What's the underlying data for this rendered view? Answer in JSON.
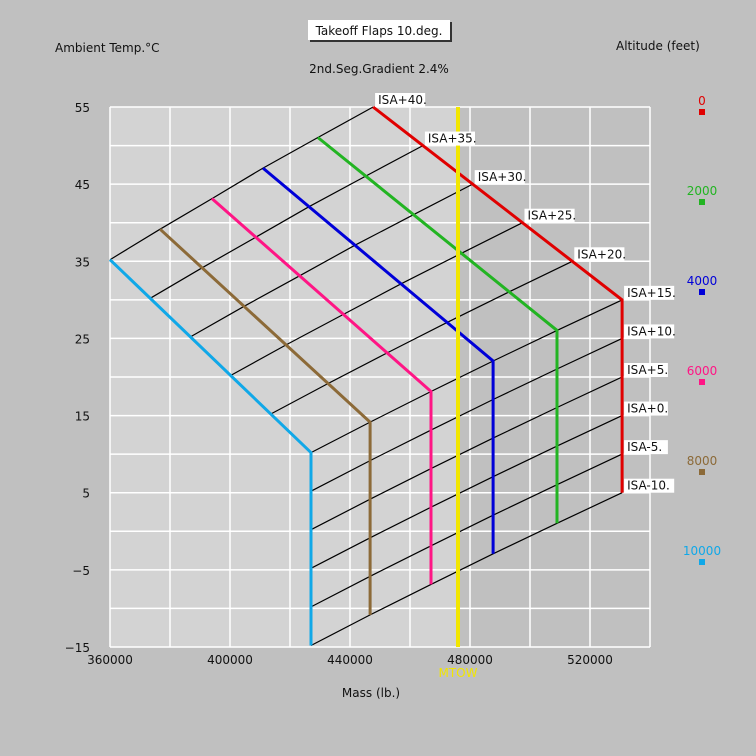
{
  "chart_data": {
    "type": "line",
    "title": "Takeoff Flaps 10.deg.",
    "subtitle": "2nd.Seg.Gradient 2.4%",
    "xlabel": "Mass (lb.)",
    "ylabel": "Ambient Temp.°C",
    "legend_title": "Altitude (feet)",
    "legend_position": "right",
    "xlim": [
      360000,
      540000
    ],
    "ylim": [
      -15,
      55
    ],
    "x_ticks": [
      360000,
      400000,
      440000,
      480000,
      520000
    ],
    "y_ticks": [
      55,
      45,
      35,
      25,
      15,
      5,
      -5,
      -15
    ],
    "x_grid_step": 20000,
    "y_grid_step": 5,
    "grid": true,
    "mtow": {
      "label": "MTOW",
      "mass": 476000,
      "color": "#f2e600"
    },
    "isa_deviations": [
      40,
      35,
      30,
      25,
      20,
      15,
      10,
      5,
      0,
      -5,
      -10
    ],
    "isa_labels": [
      "ISA+40.",
      "ISA+35.",
      "ISA+30.",
      "ISA+25.",
      "ISA+20.",
      "ISA+15.",
      "ISA+10.",
      "ISA+5.",
      "ISA+0.",
      "ISA-5.",
      "ISA-10."
    ],
    "series": [
      {
        "name": "0",
        "altitude": 0,
        "color": "#e00000",
        "mass_isa40": 447700,
        "mass_isa15": 530700
      },
      {
        "name": "2000",
        "altitude": 2000,
        "color": "#22b422",
        "mass_isa40": 429300,
        "mass_isa15": 509000
      },
      {
        "name": "4000",
        "altitude": 4000,
        "color": "#0000d8",
        "mass_isa40": 411000,
        "mass_isa15": 487700
      },
      {
        "name": "6000",
        "altitude": 6000,
        "color": "#ff1585",
        "mass_isa40": 394000,
        "mass_isa15": 467000
      },
      {
        "name": "8000",
        "altitude": 8000,
        "color": "#8c6a38",
        "mass_isa40": 376700,
        "mass_isa15": 446700
      },
      {
        "name": "10000",
        "altitude": 10000,
        "color": "#10a8e8",
        "mass_isa40": 360000,
        "mass_isa15": 427000
      }
    ]
  }
}
